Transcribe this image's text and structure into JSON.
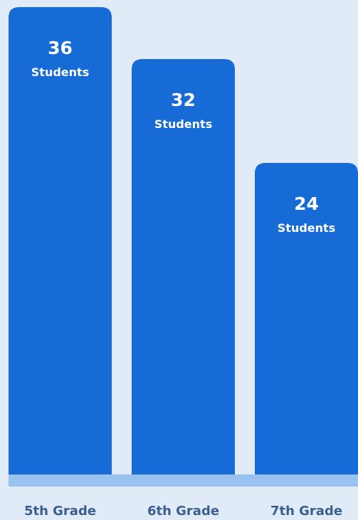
{
  "chart_data": {
    "type": "bar",
    "categories": [
      "5th Grade",
      "6th Grade",
      "7th Grade"
    ],
    "values": [
      36,
      32,
      24
    ],
    "value_unit": "Students",
    "ylim": [
      0,
      36
    ],
    "grid": false,
    "legend": "none"
  },
  "colors": {
    "background": "#e1ebf8",
    "bar": "#176bd6",
    "baseline": "#99c2f0",
    "bar_text": "#ffffff",
    "category_text": "#3a5f8f"
  }
}
